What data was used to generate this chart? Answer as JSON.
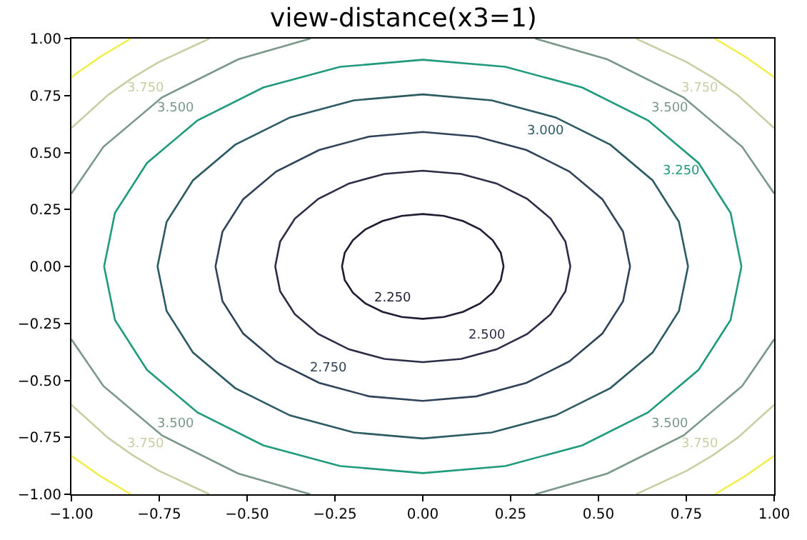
{
  "chart_data": {
    "type": "line",
    "title": "view-distance(x3=1)",
    "xlim": [
      -1,
      1
    ],
    "ylim": [
      -1,
      1
    ],
    "xticks": [
      {
        "value": -1,
        "label": "−1.00"
      },
      {
        "value": -0.75,
        "label": "−0.75"
      },
      {
        "value": -0.5,
        "label": "−0.50"
      },
      {
        "value": -0.25,
        "label": "−0.25"
      },
      {
        "value": 0,
        "label": "0.00"
      },
      {
        "value": 0.25,
        "label": "0.25"
      },
      {
        "value": 0.5,
        "label": "0.50"
      },
      {
        "value": 0.75,
        "label": "0.75"
      },
      {
        "value": 1,
        "label": "1.00"
      }
    ],
    "yticks": [
      {
        "value": -1,
        "label": "−1.00"
      },
      {
        "value": -0.75,
        "label": "−0.75"
      },
      {
        "value": -0.5,
        "label": "−0.50"
      },
      {
        "value": -0.25,
        "label": "−0.25"
      },
      {
        "value": 0,
        "label": "0.00"
      },
      {
        "value": 0.25,
        "label": "0.25"
      },
      {
        "value": 0.5,
        "label": "0.50"
      },
      {
        "value": 0.75,
        "label": "0.75"
      },
      {
        "value": 1,
        "label": "1.00"
      }
    ],
    "marker": "none",
    "line_style": "solid",
    "series": [
      {
        "name": "2.250",
        "color": "#1e1b33",
        "x": [
          0.23,
          0.222,
          0.199,
          0.163,
          0.115,
          0.06,
          0,
          -0.06,
          -0.115,
          -0.163,
          -0.199,
          -0.222,
          -0.23,
          null,
          -0.23,
          -0.222,
          -0.199,
          -0.163,
          -0.115,
          -0.06,
          0,
          0.06,
          0.115,
          0.163,
          0.199,
          0.222,
          0.23
        ],
        "values": [
          0,
          0.06,
          0.115,
          0.163,
          0.199,
          0.222,
          0.23,
          0.222,
          0.199,
          0.163,
          0.115,
          0.06,
          0,
          null,
          0,
          -0.06,
          -0.115,
          -0.163,
          -0.199,
          -0.222,
          -0.23,
          -0.222,
          -0.199,
          -0.163,
          -0.115,
          -0.06,
          0
        ]
      },
      {
        "name": "2.500",
        "color": "#2c2c47",
        "x": [
          0.42,
          0.406,
          0.364,
          0.297,
          0.21,
          0.109,
          0,
          -0.109,
          -0.21,
          -0.297,
          -0.364,
          -0.406,
          -0.42,
          null,
          -0.42,
          -0.406,
          -0.364,
          -0.297,
          -0.21,
          -0.109,
          0,
          0.109,
          0.21,
          0.297,
          0.364,
          0.406,
          0.42
        ],
        "values": [
          0,
          0.109,
          0.21,
          0.297,
          0.364,
          0.406,
          0.42,
          0.406,
          0.364,
          0.297,
          0.21,
          0.109,
          0,
          null,
          0,
          -0.109,
          -0.21,
          -0.297,
          -0.364,
          -0.406,
          -0.42,
          -0.406,
          -0.364,
          -0.297,
          -0.21,
          -0.109,
          0
        ]
      },
      {
        "name": "2.750",
        "color": "#2f4258",
        "x": [
          0.59,
          0.57,
          0.511,
          0.417,
          0.295,
          0.153,
          0,
          -0.153,
          -0.295,
          -0.417,
          -0.511,
          -0.57,
          -0.59,
          null,
          -0.59,
          -0.57,
          -0.511,
          -0.417,
          -0.295,
          -0.153,
          0,
          0.153,
          0.295,
          0.417,
          0.511,
          0.57,
          0.59
        ],
        "values": [
          0,
          0.153,
          0.295,
          0.417,
          0.511,
          0.57,
          0.59,
          0.57,
          0.511,
          0.417,
          0.295,
          0.153,
          0,
          null,
          0,
          -0.153,
          -0.295,
          -0.417,
          -0.511,
          -0.57,
          -0.59,
          -0.57,
          -0.511,
          -0.417,
          -0.295,
          -0.153,
          0
        ]
      },
      {
        "name": "3.000",
        "color": "#2c5a63",
        "x": [
          0.755,
          0.729,
          0.654,
          0.534,
          0.378,
          0.196,
          0,
          -0.196,
          -0.378,
          -0.534,
          -0.654,
          -0.729,
          -0.755,
          null,
          -0.755,
          -0.729,
          -0.654,
          -0.534,
          -0.378,
          -0.196,
          0,
          0.196,
          0.378,
          0.534,
          0.654,
          0.729,
          0.755
        ],
        "values": [
          0,
          0.196,
          0.378,
          0.534,
          0.654,
          0.729,
          0.755,
          0.729,
          0.654,
          0.534,
          0.378,
          0.196,
          0,
          null,
          0,
          -0.196,
          -0.378,
          -0.534,
          -0.654,
          -0.729,
          -0.755,
          -0.729,
          -0.654,
          -0.534,
          -0.378,
          -0.196,
          0
        ]
      },
      {
        "name": "3.250",
        "color": "#1f9a7c",
        "x": [
          0.907,
          0.876,
          0.785,
          0.641,
          0.454,
          0.235,
          0,
          -0.235,
          -0.454,
          -0.641,
          -0.785,
          -0.876,
          -0.907,
          null,
          -0.907,
          -0.876,
          -0.785,
          -0.641,
          -0.454,
          -0.235,
          0,
          0.235,
          0.454,
          0.641,
          0.785,
          0.876,
          0.907
        ],
        "values": [
          0,
          0.235,
          0.454,
          0.641,
          0.785,
          0.876,
          0.907,
          0.876,
          0.785,
          0.641,
          0.454,
          0.235,
          0,
          null,
          0,
          -0.235,
          -0.454,
          -0.641,
          -0.785,
          -0.876,
          -0.907,
          -0.876,
          -0.785,
          -0.641,
          -0.454,
          -0.235,
          0
        ]
      },
      {
        "name": "3.500",
        "color": "#7a978a",
        "x": [
          -1,
          -0.909,
          -0.742,
          -0.525,
          -0.32,
          null,
          0.32,
          0.525,
          0.742,
          0.909,
          1,
          null,
          1,
          0.909,
          0.742,
          0.525,
          0.32,
          null,
          -0.32,
          -0.525,
          -0.742,
          -0.909,
          -1
        ],
        "values": [
          0.32,
          0.525,
          0.742,
          0.909,
          1,
          null,
          1,
          0.909,
          0.742,
          0.525,
          0.32,
          null,
          -0.32,
          -0.525,
          -0.742,
          -0.909,
          -1,
          null,
          -1,
          -0.909,
          -0.742,
          -0.525,
          -0.32
        ]
      },
      {
        "name": "3.750",
        "color": "#c9cfa4",
        "x": [
          -1,
          -0.896,
          -0.827,
          -0.752,
          -0.607,
          null,
          0.607,
          0.752,
          0.827,
          0.896,
          1,
          null,
          1,
          0.896,
          0.827,
          0.752,
          0.607,
          null,
          -0.607,
          -0.752,
          -0.827,
          -0.896,
          -1
        ],
        "values": [
          0.607,
          0.752,
          0.827,
          0.896,
          1,
          null,
          1,
          0.896,
          0.827,
          0.752,
          0.607,
          null,
          -0.607,
          -0.752,
          -0.827,
          -0.896,
          -1,
          null,
          -1,
          -0.896,
          -0.827,
          -0.752,
          -0.607
        ]
      },
      {
        "color": "#f2ee52",
        "x": [
          -1,
          -0.919,
          -0.831,
          null,
          0.831,
          0.919,
          1,
          null,
          1,
          0.919,
          0.831,
          null,
          -0.831,
          -0.919,
          -1
        ],
        "values": [
          0.831,
          0.919,
          1,
          null,
          1,
          0.919,
          0.831,
          null,
          -0.831,
          -0.919,
          -1,
          null,
          -1,
          -0.919,
          -0.831
        ]
      }
    ]
  }
}
